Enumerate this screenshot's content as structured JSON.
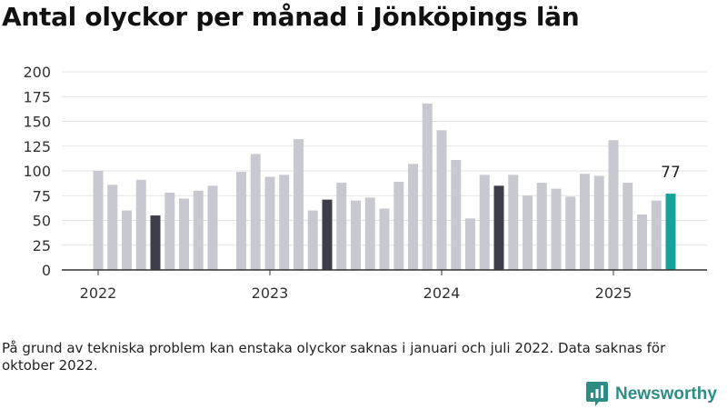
{
  "title": "Antal olyckor per månad i Jönköpings län",
  "note": "På grund av tekniska problem kan enstaka olyckor saknas i januari och juli 2022. Data saknas för oktober 2022.",
  "brand": {
    "name": "Newsworthy",
    "icon": "newsworthy-logo-icon",
    "color": "#2d8c84"
  },
  "chart_data": {
    "type": "bar",
    "title": "Antal olyckor per månad i Jönköpings län",
    "xlabel": "",
    "ylabel": "",
    "ylim": [
      0,
      200
    ],
    "yticks": [
      "200",
      "175",
      "150",
      "125",
      "100",
      "75",
      "50",
      "25",
      "0"
    ],
    "grid": true,
    "xtick_labels": [
      "2022",
      "2023",
      "2024",
      "2025"
    ],
    "colors": {
      "default": "#c8c8d0",
      "highlight": "#3e3e4a",
      "latest": "#16a39a"
    },
    "categories": [
      "2022-01",
      "2022-02",
      "2022-03",
      "2022-04",
      "2022-05",
      "2022-06",
      "2022-07",
      "2022-08",
      "2022-09",
      "2022-10",
      "2022-11",
      "2022-12",
      "2023-01",
      "2023-02",
      "2023-03",
      "2023-04",
      "2023-05",
      "2023-06",
      "2023-07",
      "2023-08",
      "2023-09",
      "2023-10",
      "2023-11",
      "2023-12",
      "2024-01",
      "2024-02",
      "2024-03",
      "2024-04",
      "2024-05",
      "2024-06",
      "2024-07",
      "2024-08",
      "2024-09",
      "2024-10",
      "2024-11",
      "2024-12",
      "2025-01",
      "2025-02",
      "2025-03",
      "2025-04",
      "2025-05",
      "2025-06"
    ],
    "values": [
      100,
      86,
      60,
      91,
      55,
      78,
      72,
      80,
      85,
      null,
      99,
      117,
      94,
      96,
      132,
      60,
      71,
      88,
      70,
      73,
      62,
      89,
      107,
      168,
      141,
      111,
      52,
      96,
      85,
      96,
      75,
      88,
      82,
      74,
      97,
      95,
      131,
      88,
      56,
      70,
      77,
      null
    ],
    "highlight_categories": [
      "2022-05",
      "2023-05",
      "2024-05"
    ],
    "latest_category": "2025-05",
    "latest_label": "77"
  }
}
